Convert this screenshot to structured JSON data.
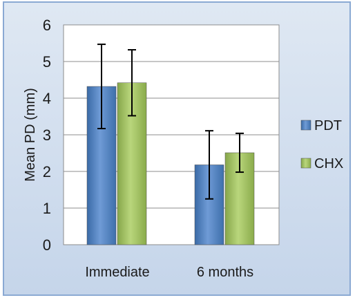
{
  "chart_data": {
    "type": "bar",
    "categories": [
      "Immediate",
      "6 months"
    ],
    "series": [
      {
        "name": "PDT",
        "values": [
          4.32,
          2.18
        ],
        "error": [
          1.15,
          0.93
        ],
        "color": "#4a7ebb"
      },
      {
        "name": "CHX",
        "values": [
          4.42,
          2.51
        ],
        "error": [
          0.9,
          0.53
        ],
        "color": "#9bbb59"
      }
    ],
    "ylabel": "Mean PD (mm)",
    "xlabel": "",
    "ylim": [
      0,
      6
    ],
    "yticks": [
      "0",
      "1",
      "2",
      "3",
      "4",
      "5",
      "6"
    ],
    "grid": true,
    "legend_position": "right"
  }
}
